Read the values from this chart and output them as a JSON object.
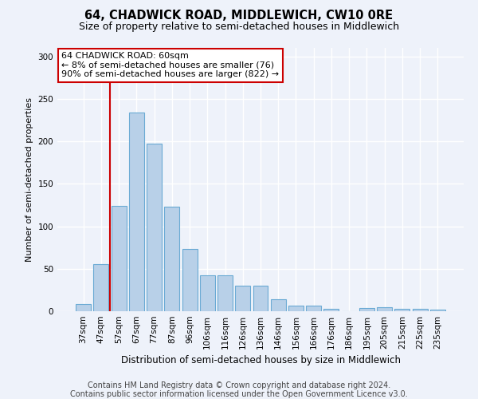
{
  "title": "64, CHADWICK ROAD, MIDDLEWICH, CW10 0RE",
  "subtitle": "Size of property relative to semi-detached houses in Middlewich",
  "xlabel": "Distribution of semi-detached houses by size in Middlewich",
  "ylabel": "Number of semi-detached properties",
  "categories": [
    "37sqm",
    "47sqm",
    "57sqm",
    "67sqm",
    "77sqm",
    "87sqm",
    "96sqm",
    "106sqm",
    "116sqm",
    "126sqm",
    "136sqm",
    "146sqm",
    "156sqm",
    "166sqm",
    "176sqm",
    "186sqm",
    "195sqm",
    "205sqm",
    "215sqm",
    "225sqm",
    "235sqm"
  ],
  "values": [
    8,
    55,
    124,
    234,
    197,
    123,
    73,
    42,
    42,
    30,
    30,
    14,
    7,
    7,
    3,
    0,
    4,
    5,
    3,
    3,
    2
  ],
  "bar_color": "#b8d0e8",
  "bar_edge_color": "#6aaad4",
  "vline_x": 1.5,
  "vline_color": "#cc0000",
  "annotation_text": "64 CHADWICK ROAD: 60sqm\n← 8% of semi-detached houses are smaller (76)\n90% of semi-detached houses are larger (822) →",
  "annotation_box_color": "#ffffff",
  "annotation_box_edge": "#cc0000",
  "ylim": [
    0,
    310
  ],
  "yticks": [
    0,
    50,
    100,
    150,
    200,
    250,
    300
  ],
  "footer_line1": "Contains HM Land Registry data © Crown copyright and database right 2024.",
  "footer_line2": "Contains public sector information licensed under the Open Government Licence v3.0.",
  "bg_color": "#eef2fa",
  "grid_color": "#ffffff",
  "title_fontsize": 10.5,
  "subtitle_fontsize": 9,
  "footer_fontsize": 7,
  "annotation_fontsize": 8,
  "ylabel_fontsize": 8,
  "xlabel_fontsize": 8.5,
  "tick_fontsize": 7.5
}
